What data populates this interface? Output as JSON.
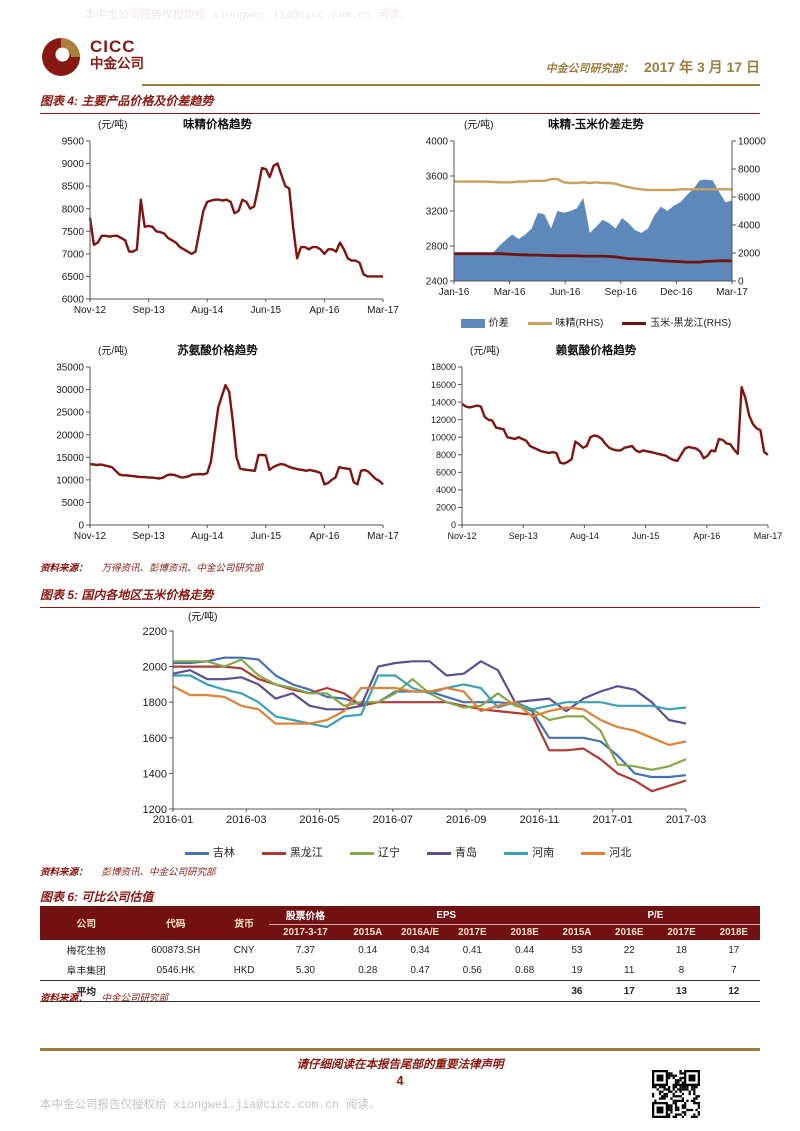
{
  "theme": {
    "maroon": "#8a1812",
    "gold": "#9c7c3c",
    "table_header_bg": "#731012",
    "chart_line_red": "#7e1511"
  },
  "watermark": {
    "text": "本中金公司报告仅授权给 xiongwei.jia@cicc.com.cn 阅读。"
  },
  "header": {
    "cicc_en": "CICC",
    "cicc_cn": "中金公司",
    "dept_label": "中金公司研究部：",
    "date": "2017 年 3 月 17 日"
  },
  "figure4": {
    "title": "图表 4:  主要产品价格及价差趋势",
    "source_label": "资料来源：",
    "source_text": "万得资讯、彭博资讯、中金公司研究部"
  },
  "figure5": {
    "title": "图表 5:  国内各地区玉米价格走势",
    "source_label": "资料来源：",
    "source_text": "彭博资讯、中金公司研究部"
  },
  "figure6": {
    "title": "图表 6:  可比公司估值",
    "source_label": "资料来源：",
    "source_text": "中金公司研究部",
    "table": {
      "h_company": "公司",
      "h_code": "代码",
      "h_currency": "货币",
      "h_price_group": "股票价格",
      "h_price_date": "2017-3-17",
      "h_eps_group": "EPS",
      "h_eps_cols": [
        "2015A",
        "2016A/E",
        "2017E",
        "2018E"
      ],
      "h_pe_group": "P/E",
      "h_pe_cols": [
        "2015A",
        "2016E",
        "2017E",
        "2018E"
      ],
      "rows": [
        [
          "梅花生物",
          "600873.SH",
          "CNY",
          "7.37",
          "0.14",
          "0.34",
          "0.41",
          "0.44",
          "53",
          "22",
          "18",
          "17"
        ],
        [
          "阜丰集团",
          "0546.HK",
          "HKD",
          "5.30",
          "0.28",
          "0.47",
          "0.56",
          "0.68",
          "19",
          "11",
          "8",
          "7"
        ]
      ],
      "avg": [
        "平均",
        "",
        "",
        "",
        "",
        "",
        "",
        "",
        "36",
        "17",
        "13",
        "12"
      ]
    }
  },
  "footer": {
    "legal": "请仔细阅读在本报告尾部的重要法律声明",
    "page_number": "4"
  },
  "chart_data": [
    {
      "type": "line",
      "title": "味精价格趋势",
      "unit": "(元/吨)",
      "ylim": [
        6000,
        9500
      ],
      "ystep": 500,
      "x_labels": [
        "Nov-12",
        "Sep-13",
        "Aug-14",
        "Jun-15",
        "Apr-16",
        "Mar-17"
      ],
      "series": [
        {
          "name": "味精",
          "color": "#7e1511",
          "w": 2.4,
          "values": [
            7800,
            7200,
            7250,
            7400,
            7400,
            7380,
            7400,
            7400,
            7350,
            7300,
            7050,
            7050,
            7100,
            8200,
            7600,
            7620,
            7600,
            7500,
            7480,
            7450,
            7350,
            7300,
            7250,
            7150,
            7100,
            7050,
            7000,
            7050,
            7500,
            7950,
            8150,
            8180,
            8200,
            8200,
            8180,
            8200,
            8150,
            7900,
            7950,
            8200,
            8150,
            8000,
            8050,
            8450,
            8900,
            8880,
            8700,
            8950,
            9000,
            8750,
            8500,
            8450,
            7600,
            6900,
            7150,
            7150,
            7100,
            7150,
            7150,
            7100,
            7000,
            7100,
            7100,
            7050,
            7250,
            7100,
            6900,
            6850,
            6850,
            6800,
            6550,
            6500,
            6500,
            6500,
            6500,
            6500
          ]
        }
      ]
    },
    {
      "type": "area+line",
      "title": "味精-玉米价差走势",
      "unit": "(元/吨)",
      "ylim_left": [
        2400,
        4000
      ],
      "ystep_left": 400,
      "ylim_right": [
        0,
        10000
      ],
      "ystep_right": 2000,
      "x_labels": [
        "Jan-16",
        "Mar-16",
        "Jun-16",
        "Sep-16",
        "Dec-16",
        "Mar-17"
      ],
      "series": [
        {
          "name": "价差",
          "type": "area",
          "axis": "left",
          "color": "#5e88ba",
          "values": [
            2700,
            2700,
            2700,
            2700,
            2700,
            2710,
            2720,
            2800,
            2870,
            2930,
            2880,
            2930,
            3000,
            3180,
            3160,
            3000,
            3200,
            3180,
            3200,
            3230,
            3350,
            2950,
            3020,
            3100,
            3060,
            3000,
            3120,
            3060,
            2980,
            2950,
            3000,
            3150,
            3250,
            3200,
            3260,
            3300,
            3380,
            3450,
            3550,
            3560,
            3550,
            3420,
            3300,
            3320
          ]
        },
        {
          "name": "味精(RHS)",
          "type": "line",
          "axis": "right",
          "color": "#c9a15c",
          "w": 2.4,
          "values": [
            7100,
            7100,
            7100,
            7100,
            7100,
            7100,
            7080,
            7050,
            7050,
            7050,
            7100,
            7100,
            7150,
            7150,
            7150,
            7280,
            7280,
            7050,
            7000,
            7000,
            7050,
            7000,
            7050,
            7000,
            7000,
            6950,
            6800,
            6700,
            6600,
            6550,
            6500,
            6500,
            6500,
            6500,
            6500,
            6550,
            6550,
            6550,
            6550,
            6550,
            6550,
            6550,
            6550,
            6550
          ]
        },
        {
          "name": "玉米-黑龙江(RHS)",
          "type": "line",
          "axis": "right",
          "color": "#6e1310",
          "w": 2.8,
          "values": [
            1950,
            1950,
            1950,
            1950,
            1950,
            1950,
            1950,
            1950,
            1930,
            1900,
            1880,
            1870,
            1850,
            1850,
            1830,
            1820,
            1800,
            1800,
            1800,
            1800,
            1780,
            1780,
            1780,
            1780,
            1750,
            1720,
            1650,
            1600,
            1570,
            1550,
            1520,
            1500,
            1450,
            1420,
            1400,
            1380,
            1350,
            1350,
            1350,
            1400,
            1420,
            1440,
            1440,
            1430
          ]
        }
      ]
    },
    {
      "type": "line",
      "title": "苏氨酸价格趋势",
      "unit": "(元/吨)",
      "ylim": [
        0,
        35000
      ],
      "ystep": 5000,
      "x_labels": [
        "Nov-12",
        "Sep-13",
        "Aug-14",
        "Jun-15",
        "Apr-16",
        "Mar-17"
      ],
      "series": [
        {
          "name": "苏氨酸",
          "color": "#7e1511",
          "w": 2.4,
          "values": [
            13500,
            13400,
            13300,
            13400,
            13200,
            13000,
            12800,
            12000,
            11200,
            11000,
            11000,
            10900,
            10800,
            10700,
            10600,
            10600,
            10500,
            10500,
            10400,
            10300,
            10500,
            11000,
            11200,
            11100,
            10800,
            10500,
            10600,
            10800,
            11200,
            11200,
            11300,
            11200,
            11500,
            14000,
            20000,
            26000,
            28500,
            31000,
            29500,
            23000,
            15000,
            12500,
            12300,
            12200,
            12100,
            12000,
            15500,
            15500,
            15400,
            12200,
            12800,
            13200,
            13500,
            13400,
            13000,
            12700,
            12500,
            12300,
            12200,
            12000,
            12200,
            12000,
            11800,
            11500,
            9000,
            9300,
            10000,
            10500,
            12800,
            12600,
            12500,
            12400,
            9500,
            9000,
            12000,
            12200,
            11800,
            11000,
            10200,
            9800,
            9000
          ]
        }
      ]
    },
    {
      "type": "line",
      "title": "赖氨酸价格趋势",
      "unit": "(元/吨)",
      "ylim": [
        0,
        18000
      ],
      "ystep": 2000,
      "x_labels": [
        "Nov-12",
        "Sep-13",
        "Aug-14",
        "Jun-15",
        "Apr-16",
        "Mar-17"
      ],
      "series": [
        {
          "name": "赖氨酸",
          "color": "#7e1511",
          "w": 2.4,
          "values": [
            13800,
            13500,
            13400,
            13500,
            13600,
            13500,
            12300,
            12000,
            11900,
            11100,
            11000,
            10900,
            10000,
            9900,
            9800,
            10000,
            9800,
            9600,
            9000,
            8800,
            8600,
            8400,
            8300,
            8200,
            8300,
            8200,
            7100,
            7000,
            7200,
            7500,
            9500,
            9200,
            8800,
            9000,
            10000,
            10200,
            10100,
            9800,
            9200,
            8800,
            8600,
            8500,
            8500,
            8800,
            8900,
            9000,
            8500,
            8300,
            8500,
            8400,
            8300,
            8200,
            8100,
            8000,
            7900,
            7600,
            7400,
            7300,
            8000,
            8700,
            8900,
            8800,
            8700,
            8400,
            7600,
            7900,
            8500,
            8400,
            9800,
            9700,
            9300,
            9200,
            8600,
            8100,
            15700,
            14500,
            12500,
            11500,
            11000,
            10800,
            8300,
            8000
          ]
        }
      ]
    },
    {
      "type": "line",
      "title": "",
      "unit": "(元/吨)",
      "ylim": [
        1200,
        2200
      ],
      "ystep": 200,
      "x_labels": [
        "2016-01",
        "2016-03",
        "2016-05",
        "2016-07",
        "2016-09",
        "2016-11",
        "2017-01",
        "2017-03"
      ],
      "series": [
        {
          "name": "吉林",
          "color": "#4472b0",
          "w": 2.2,
          "values": [
            2020,
            2020,
            2030,
            2050,
            2050,
            2040,
            1950,
            1900,
            1870,
            1830,
            1820,
            1790,
            1800,
            1860,
            1860,
            1860,
            1830,
            1800,
            1800,
            1800,
            1790,
            1750,
            1600,
            1600,
            1600,
            1580,
            1500,
            1400,
            1380,
            1380,
            1390
          ]
        },
        {
          "name": "黑龙江",
          "color": "#b03a34",
          "w": 2.2,
          "values": [
            2000,
            2000,
            2000,
            2000,
            1990,
            1930,
            1900,
            1870,
            1850,
            1880,
            1850,
            1780,
            1800,
            1800,
            1800,
            1800,
            1800,
            1780,
            1760,
            1750,
            1740,
            1730,
            1530,
            1530,
            1540,
            1480,
            1400,
            1360,
            1300,
            1330,
            1360
          ]
        },
        {
          "name": "辽宁",
          "color": "#84a84a",
          "w": 2.2,
          "values": [
            2030,
            2030,
            2030,
            2000,
            2040,
            1950,
            1900,
            1880,
            1850,
            1850,
            1780,
            1800,
            1800,
            1850,
            1930,
            1850,
            1800,
            1770,
            1780,
            1850,
            1780,
            1760,
            1700,
            1720,
            1720,
            1640,
            1450,
            1440,
            1420,
            1440,
            1480
          ]
        },
        {
          "name": "青岛",
          "color": "#5f4e92",
          "w": 2.2,
          "values": [
            1960,
            1980,
            1930,
            1930,
            1940,
            1900,
            1820,
            1850,
            1780,
            1760,
            1760,
            1780,
            2000,
            2020,
            2030,
            2030,
            1950,
            1960,
            2030,
            1980,
            1800,
            1810,
            1820,
            1750,
            1820,
            1860,
            1890,
            1870,
            1800,
            1700,
            1680
          ]
        },
        {
          "name": "河南",
          "color": "#38a3b4",
          "w": 2.2,
          "values": [
            1950,
            1950,
            1900,
            1870,
            1850,
            1800,
            1720,
            1700,
            1680,
            1660,
            1720,
            1730,
            1950,
            1950,
            1880,
            1850,
            1880,
            1900,
            1880,
            1770,
            1800,
            1760,
            1780,
            1800,
            1800,
            1800,
            1780,
            1780,
            1780,
            1760,
            1770
          ]
        },
        {
          "name": "河北",
          "color": "#e08138",
          "w": 2.2,
          "values": [
            1890,
            1840,
            1840,
            1830,
            1780,
            1760,
            1680,
            1680,
            1680,
            1700,
            1750,
            1880,
            1880,
            1880,
            1860,
            1860,
            1880,
            1860,
            1750,
            1780,
            1800,
            1720,
            1750,
            1770,
            1760,
            1700,
            1660,
            1640,
            1600,
            1560,
            1580
          ]
        }
      ]
    }
  ]
}
